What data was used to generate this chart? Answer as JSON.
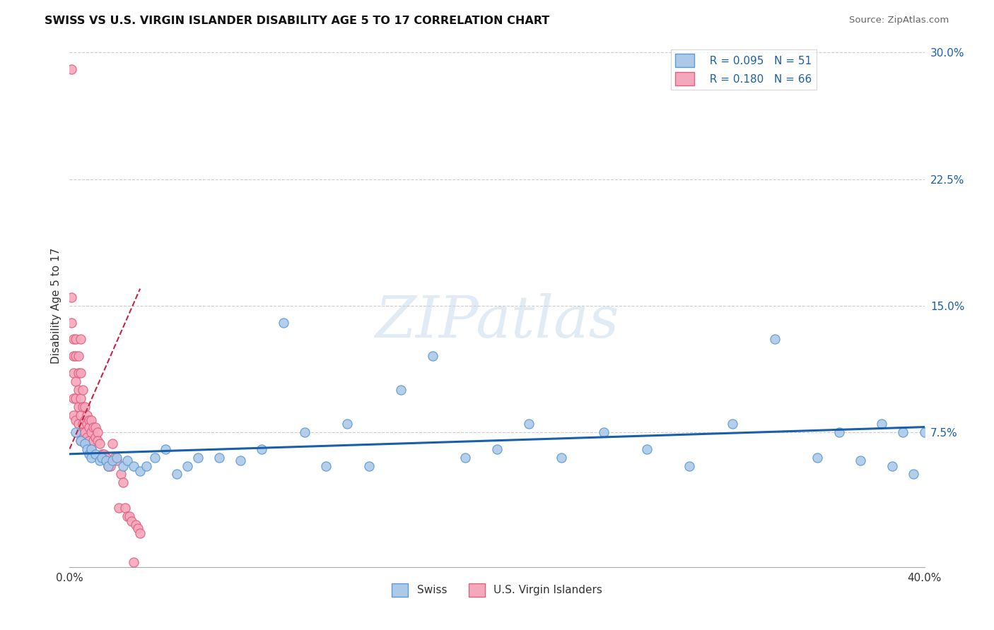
{
  "title": "SWISS VS U.S. VIRGIN ISLANDER DISABILITY AGE 5 TO 17 CORRELATION CHART",
  "source": "Source: ZipAtlas.com",
  "ylabel": "Disability Age 5 to 17",
  "xlim": [
    0.0,
    0.4
  ],
  "ylim": [
    -0.005,
    0.305
  ],
  "xtick_labels": [
    "0.0%",
    "40.0%"
  ],
  "xtick_positions": [
    0.0,
    0.4
  ],
  "yticks_right": [
    0.075,
    0.15,
    0.225,
    0.3
  ],
  "ytick_labels_right": [
    "7.5%",
    "15.0%",
    "22.5%",
    "30.0%"
  ],
  "legend_r_swiss": "R = 0.095",
  "legend_n_swiss": "N = 51",
  "legend_r_vi": "R = 0.180",
  "legend_n_vi": "N = 66",
  "swiss_color": "#adc9e8",
  "vi_color": "#f5a8bc",
  "swiss_edge": "#5b9bd5",
  "vi_edge": "#e06080",
  "trend_swiss_color": "#1a5faa",
  "trend_vi_color": "#cc2244",
  "grid_color": "#cccccc",
  "background_color": "#ffffff",
  "watermark": "ZIPatlas",
  "swiss_x": [
    0.003,
    0.005,
    0.007,
    0.008,
    0.009,
    0.01,
    0.01,
    0.012,
    0.014,
    0.015,
    0.017,
    0.018,
    0.02,
    0.022,
    0.025,
    0.027,
    0.03,
    0.033,
    0.036,
    0.04,
    0.045,
    0.05,
    0.055,
    0.06,
    0.07,
    0.08,
    0.09,
    0.1,
    0.11,
    0.12,
    0.13,
    0.14,
    0.155,
    0.17,
    0.185,
    0.2,
    0.215,
    0.23,
    0.25,
    0.27,
    0.29,
    0.31,
    0.33,
    0.35,
    0.36,
    0.37,
    0.38,
    0.385,
    0.39,
    0.395,
    0.4
  ],
  "swiss_y": [
    0.075,
    0.07,
    0.068,
    0.065,
    0.062,
    0.06,
    0.065,
    0.062,
    0.058,
    0.06,
    0.058,
    0.055,
    0.058,
    0.06,
    0.055,
    0.058,
    0.055,
    0.052,
    0.055,
    0.06,
    0.065,
    0.05,
    0.055,
    0.06,
    0.06,
    0.058,
    0.065,
    0.14,
    0.075,
    0.055,
    0.08,
    0.055,
    0.1,
    0.12,
    0.06,
    0.065,
    0.08,
    0.06,
    0.075,
    0.065,
    0.055,
    0.08,
    0.13,
    0.06,
    0.075,
    0.058,
    0.08,
    0.055,
    0.075,
    0.05,
    0.075
  ],
  "vi_x": [
    0.001,
    0.001,
    0.001,
    0.002,
    0.002,
    0.002,
    0.002,
    0.002,
    0.003,
    0.003,
    0.003,
    0.003,
    0.003,
    0.004,
    0.004,
    0.004,
    0.004,
    0.004,
    0.005,
    0.005,
    0.005,
    0.005,
    0.005,
    0.005,
    0.006,
    0.006,
    0.006,
    0.006,
    0.007,
    0.007,
    0.007,
    0.008,
    0.008,
    0.008,
    0.009,
    0.009,
    0.009,
    0.01,
    0.01,
    0.01,
    0.011,
    0.011,
    0.012,
    0.012,
    0.013,
    0.013,
    0.014,
    0.015,
    0.016,
    0.017,
    0.018,
    0.019,
    0.02,
    0.021,
    0.022,
    0.023,
    0.024,
    0.025,
    0.026,
    0.027,
    0.028,
    0.029,
    0.03,
    0.031,
    0.032,
    0.033
  ],
  "vi_y": [
    0.29,
    0.155,
    0.14,
    0.13,
    0.12,
    0.11,
    0.095,
    0.085,
    0.13,
    0.12,
    0.105,
    0.095,
    0.082,
    0.12,
    0.11,
    0.1,
    0.09,
    0.08,
    0.13,
    0.11,
    0.095,
    0.085,
    0.075,
    0.07,
    0.1,
    0.09,
    0.08,
    0.075,
    0.09,
    0.082,
    0.075,
    0.085,
    0.08,
    0.072,
    0.082,
    0.078,
    0.07,
    0.082,
    0.075,
    0.065,
    0.078,
    0.07,
    0.078,
    0.072,
    0.075,
    0.07,
    0.068,
    0.062,
    0.062,
    0.06,
    0.055,
    0.055,
    0.068,
    0.06,
    0.058,
    0.03,
    0.05,
    0.045,
    0.03,
    0.025,
    0.025,
    0.022,
    -0.002,
    0.02,
    0.018,
    0.015
  ],
  "vi_trend_x": [
    0.0,
    0.033
  ],
  "vi_trend_y": [
    0.065,
    0.16
  ],
  "swiss_trend_x": [
    0.0,
    0.4
  ],
  "swiss_trend_y": [
    0.062,
    0.078
  ]
}
